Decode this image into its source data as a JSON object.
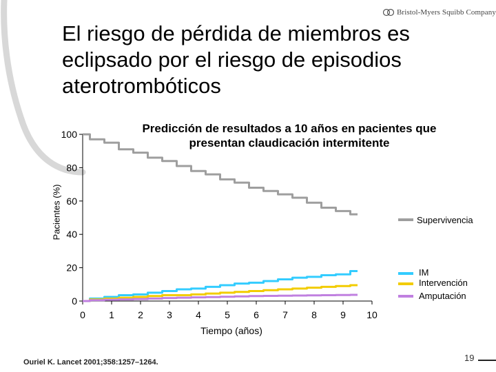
{
  "slide": {
    "title": "El riesgo de pérdida de miembros es eclipsado por el riesgo de episodios aterotrombóticos",
    "logo_text": "Bristol-Myers Squibb Company",
    "logo_icon": "bms-logo-icon",
    "citation": "Ouriel K. Lancet 2001;358:1257–1264.",
    "page_number": "19",
    "accent_color": "#d9d9d9"
  },
  "chart_data": {
    "type": "line",
    "title": "Predicción de resultados a 10 años en pacientes que presentan claudicación intermitente",
    "xlabel": "Tiempo (años)",
    "ylabel": "Pacientes (%)",
    "xlim": [
      0,
      10
    ],
    "ylim": [
      0,
      100
    ],
    "x_ticks": [
      0,
      1,
      2,
      3,
      4,
      5,
      6,
      7,
      8,
      9,
      10
    ],
    "y_ticks": [
      0,
      20,
      40,
      60,
      80,
      100
    ],
    "legend_position": "right",
    "series": [
      {
        "name": "Supervivencia",
        "color": "#9e9e9e",
        "x": [
          0,
          0.5,
          1,
          1.5,
          2,
          2.5,
          3,
          3.5,
          4,
          4.5,
          5,
          5.5,
          6,
          6.5,
          7,
          7.5,
          8,
          8.5,
          9,
          9.5
        ],
        "y": [
          100,
          97,
          95,
          91,
          89,
          86,
          84,
          81,
          78,
          76,
          73,
          71,
          68,
          66,
          64,
          62,
          59,
          56,
          54,
          52
        ]
      },
      {
        "name": "IM",
        "color": "#33ccff",
        "x": [
          0,
          0.5,
          1,
          1.5,
          2,
          2.5,
          3,
          3.5,
          4,
          4.5,
          5,
          5.5,
          6,
          6.5,
          7,
          7.5,
          8,
          8.5,
          9,
          9.5
        ],
        "y": [
          0,
          1.5,
          2.5,
          3.5,
          4,
          5,
          6,
          7,
          7.5,
          8.5,
          9.5,
          10.5,
          11,
          12,
          13,
          14,
          14.5,
          15.5,
          16,
          18
        ]
      },
      {
        "name": "Intervención",
        "color": "#f2cc00",
        "x": [
          0,
          0.5,
          1,
          1.5,
          2,
          2.5,
          3,
          3.5,
          4,
          4.5,
          5,
          5.5,
          6,
          6.5,
          7,
          7.5,
          8,
          8.5,
          9,
          9.5
        ],
        "y": [
          0,
          1,
          1.5,
          2,
          2.5,
          3,
          3.5,
          3.5,
          4,
          4.5,
          5,
          5.5,
          6,
          6.5,
          7,
          7.5,
          8,
          8.5,
          9,
          9.5
        ]
      },
      {
        "name": "Amputación",
        "color": "#c080e0",
        "x": [
          0,
          0.5,
          1,
          1.5,
          2,
          2.5,
          3,
          3.5,
          4,
          4.5,
          5,
          5.5,
          6,
          6.5,
          7,
          7.5,
          8,
          8.5,
          9,
          9.5
        ],
        "y": [
          0,
          0.5,
          0.8,
          1,
          1.2,
          1.5,
          1.8,
          2,
          2.2,
          2.4,
          2.6,
          2.8,
          3,
          3.1,
          3.2,
          3.3,
          3.4,
          3.5,
          3.6,
          3.7
        ]
      }
    ]
  }
}
